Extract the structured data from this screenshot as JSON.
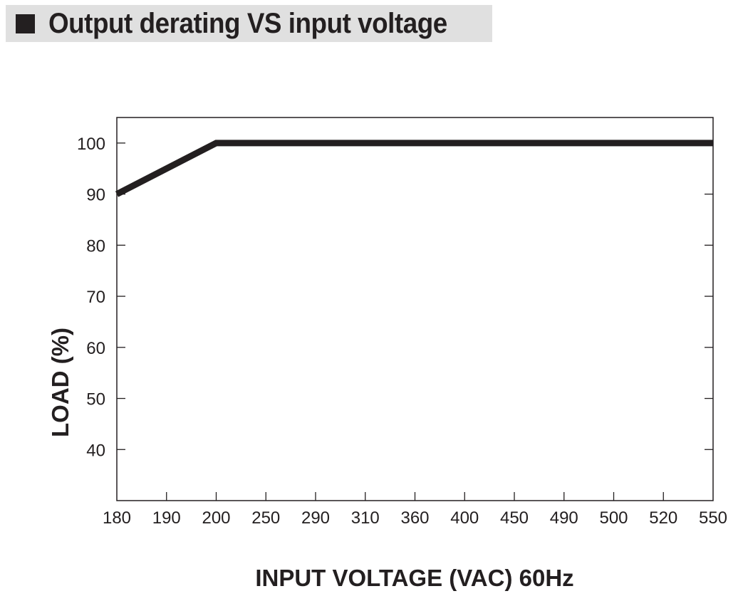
{
  "title": "Output derating VS input voltage",
  "colors": {
    "line": "#231f20",
    "title_background": "#e0e0e0",
    "frame": "#231f20"
  },
  "chart_data": {
    "type": "line",
    "title": "Output derating VS input voltage",
    "xlabel": "INPUT VOLTAGE (VAC) 60Hz",
    "ylabel": "LOAD (%)",
    "x_categories": [
      "180",
      "190",
      "200",
      "250",
      "290",
      "310",
      "360",
      "400",
      "450",
      "490",
      "500",
      "520",
      "550"
    ],
    "y_ticks": [
      40,
      50,
      60,
      70,
      80,
      90,
      100
    ],
    "ylim": [
      30,
      105
    ],
    "grid": false,
    "series": [
      {
        "x": [
          "180",
          "200",
          "550"
        ],
        "y": [
          90,
          100,
          100
        ]
      }
    ]
  }
}
